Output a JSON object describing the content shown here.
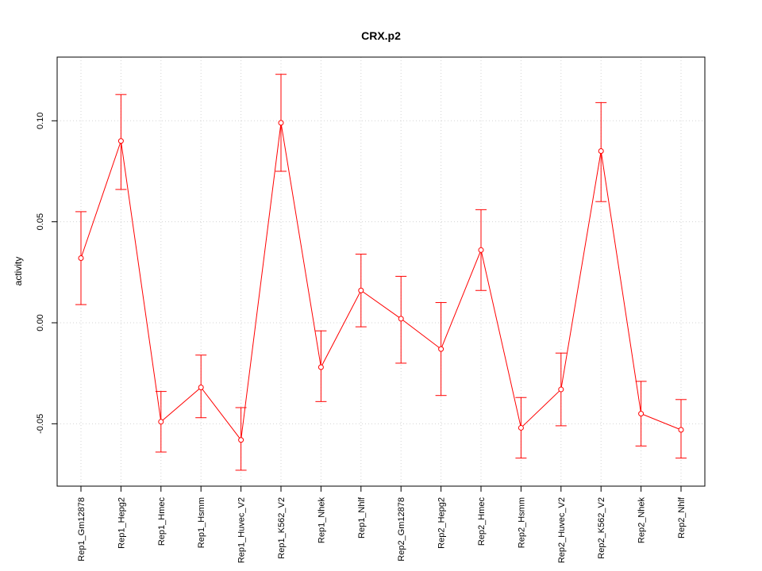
{
  "chart_data": {
    "type": "line",
    "title": "CRX.p2",
    "xlabel": "",
    "ylabel": "activity",
    "ylim": [
      -0.08,
      0.13
    ],
    "yticks": [
      -0.05,
      0.0,
      0.05,
      0.1
    ],
    "ytick_labels": [
      "-0.05",
      "0.00",
      "0.05",
      "0.10"
    ],
    "grid": true,
    "categories": [
      "Rep1_Gm12878",
      "Rep1_Hepg2",
      "Rep1_Hmec",
      "Rep1_Hsmm",
      "Rep1_Huvec_V2",
      "Rep1_K562_V2",
      "Rep1_Nhek",
      "Rep1_Nhlf",
      "Rep2_Gm12878",
      "Rep2_Hepg2",
      "Rep2_Hmec",
      "Rep2_Hsmm",
      "Rep2_Huvec_V2",
      "Rep2_K562_V2",
      "Rep2_Nhek",
      "Rep2_Nhlf"
    ],
    "series": [
      {
        "name": "activity",
        "color": "#ff0000",
        "values": [
          0.032,
          0.09,
          -0.049,
          -0.032,
          -0.058,
          0.099,
          -0.022,
          0.016,
          0.002,
          -0.013,
          0.036,
          -0.052,
          -0.033,
          0.085,
          -0.045,
          -0.053
        ],
        "upper": [
          0.055,
          0.113,
          -0.034,
          -0.016,
          -0.042,
          0.123,
          -0.004,
          0.034,
          0.023,
          0.01,
          0.056,
          -0.037,
          -0.015,
          0.109,
          -0.029,
          -0.038
        ],
        "lower": [
          0.009,
          0.066,
          -0.064,
          -0.047,
          -0.073,
          0.075,
          -0.039,
          -0.002,
          -0.02,
          -0.036,
          0.016,
          -0.067,
          -0.051,
          0.06,
          -0.061,
          -0.067
        ]
      }
    ]
  }
}
